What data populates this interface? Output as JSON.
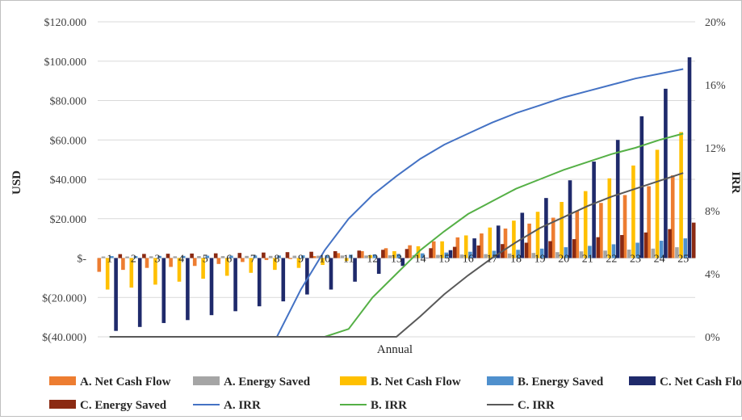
{
  "chart_data": {
    "type": "bar",
    "title": "",
    "xlabel": "Annual",
    "ylabel": "USD",
    "y2label": "IRR",
    "ylim": [
      -40000,
      120000
    ],
    "y2lim": [
      0,
      20
    ],
    "y_ticks": [
      "$120.000",
      "$100.000",
      "$80.000",
      "$60.000",
      "$40.000",
      "$20.000",
      "$-",
      "$(20.000)",
      "$(40.000)"
    ],
    "y2_ticks": [
      "20%",
      "16%",
      "12%",
      "8%",
      "4%",
      "0%"
    ],
    "categories": [
      "1",
      "2",
      "3",
      "4",
      "5",
      "6",
      "7",
      "8",
      "9",
      "10",
      "11",
      "12",
      "13",
      "14",
      "15",
      "16",
      "17",
      "18",
      "19",
      "20",
      "21",
      "22",
      "23",
      "24",
      "25"
    ],
    "legend_position": "bottom",
    "grid": "horizontal",
    "series": [
      {
        "name": "A. Net Cash Flow",
        "type": "bar",
        "axis": "left",
        "color": "#ed7d31",
        "values": [
          -7000,
          -6000,
          -5000,
          -4500,
          -4000,
          -3000,
          -2000,
          -1000,
          -500,
          1000,
          2500,
          3500,
          5000,
          6500,
          8500,
          10500,
          12500,
          15000,
          17500,
          20500,
          24000,
          28000,
          32000,
          36500,
          42000
        ]
      },
      {
        "name": "A. Energy Saved",
        "type": "bar",
        "axis": "left",
        "color": "#a5a5a5",
        "values": [
          800,
          800,
          900,
          900,
          1000,
          1000,
          1100,
          1100,
          1200,
          1200,
          1300,
          1300,
          1400,
          1500,
          1600,
          1800,
          2000,
          2300,
          2600,
          3000,
          3400,
          3800,
          4300,
          4800,
          5500
        ]
      },
      {
        "name": "B. Net Cash Flow",
        "type": "bar",
        "axis": "left",
        "color": "#ffc000",
        "values": [
          -16000,
          -15000,
          -13500,
          -12000,
          -10500,
          -9000,
          -7500,
          -6000,
          -5000,
          -3500,
          -1500,
          1500,
          3500,
          6000,
          8500,
          11500,
          15500,
          19000,
          23500,
          28500,
          34000,
          40500,
          47000,
          55000,
          64000
        ]
      },
      {
        "name": "B. Energy Saved",
        "type": "bar",
        "axis": "left",
        "color": "#4f90cd",
        "values": [
          1000,
          1000,
          1100,
          1100,
          1200,
          1200,
          1300,
          1300,
          1400,
          1500,
          1700,
          1900,
          2100,
          2400,
          2800,
          3200,
          3700,
          4200,
          4800,
          5500,
          6200,
          7000,
          7800,
          8800,
          10000
        ]
      },
      {
        "name": "C. Net Cash Flow",
        "type": "bar",
        "axis": "left",
        "color": "#1f2a6b",
        "values": [
          -37000,
          -35000,
          -33000,
          -31500,
          -29000,
          -27000,
          -24500,
          -22000,
          -18500,
          -16000,
          -12000,
          -8000,
          -4000,
          0,
          4000,
          10000,
          16500,
          23000,
          30500,
          39500,
          49000,
          60000,
          72000,
          86000,
          102000
        ]
      },
      {
        "name": "C. Energy Saved",
        "type": "bar",
        "axis": "left",
        "color": "#8b2a12",
        "values": [
          2000,
          2100,
          2200,
          2300,
          2400,
          2600,
          2800,
          3000,
          3200,
          3500,
          3800,
          4200,
          4600,
          5000,
          5700,
          6400,
          7100,
          7800,
          8600,
          9600,
          10600,
          11700,
          13000,
          14700,
          18000
        ]
      },
      {
        "name": "A. IRR",
        "type": "line",
        "axis": "right",
        "color": "#4472c4",
        "values": [
          0,
          0,
          0,
          0,
          0,
          0,
          0,
          0,
          3,
          5.5,
          7.5,
          9,
          10.2,
          11.3,
          12.2,
          12.9,
          13.6,
          14.2,
          14.7,
          15.2,
          15.6,
          16,
          16.4,
          16.7,
          17
        ]
      },
      {
        "name": "B. IRR",
        "type": "line",
        "axis": "right",
        "color": "#55b046",
        "values": [
          0,
          0,
          0,
          0,
          0,
          0,
          0,
          0,
          0,
          0,
          0.5,
          2.5,
          4,
          5.5,
          6.7,
          7.8,
          8.6,
          9.4,
          10,
          10.6,
          11.1,
          11.6,
          12,
          12.5,
          12.9
        ]
      },
      {
        "name": "C. IRR",
        "type": "line",
        "axis": "right",
        "color": "#595959",
        "values": [
          0,
          0,
          0,
          0,
          0,
          0,
          0,
          0,
          0,
          0,
          0,
          0,
          0,
          1.3,
          2.7,
          3.9,
          5,
          6,
          6.9,
          7.6,
          8.3,
          8.9,
          9.4,
          9.9,
          10.4
        ]
      }
    ]
  }
}
